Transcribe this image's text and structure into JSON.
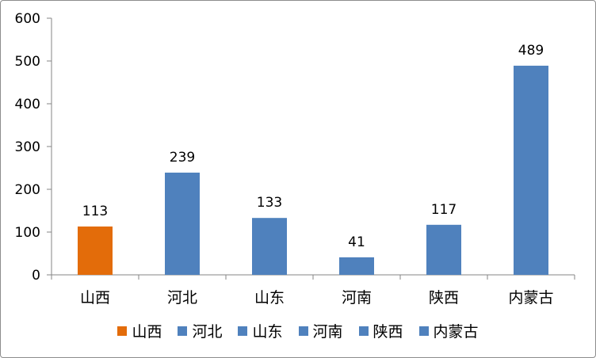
{
  "chart_data": {
    "type": "bar",
    "categories": [
      "山西",
      "河北",
      "山东",
      "河南",
      "陕西",
      "内蒙古"
    ],
    "values": [
      113,
      239,
      133,
      41,
      117,
      489
    ],
    "colors": [
      "#E36C0A",
      "#4F81BD",
      "#4F81BD",
      "#4F81BD",
      "#4F81BD",
      "#4F81BD"
    ],
    "ylim": [
      0,
      600
    ],
    "yticks": [
      "0",
      "100",
      "200",
      "300",
      "400",
      "500",
      "600"
    ],
    "data_labels": [
      "113",
      "239",
      "133",
      "41",
      "117",
      "489"
    ],
    "legend": {
      "position": "bottom",
      "entries": [
        "山西",
        "河北",
        "山东",
        "河南",
        "陕西",
        "内蒙古"
      ]
    },
    "grid": false
  }
}
